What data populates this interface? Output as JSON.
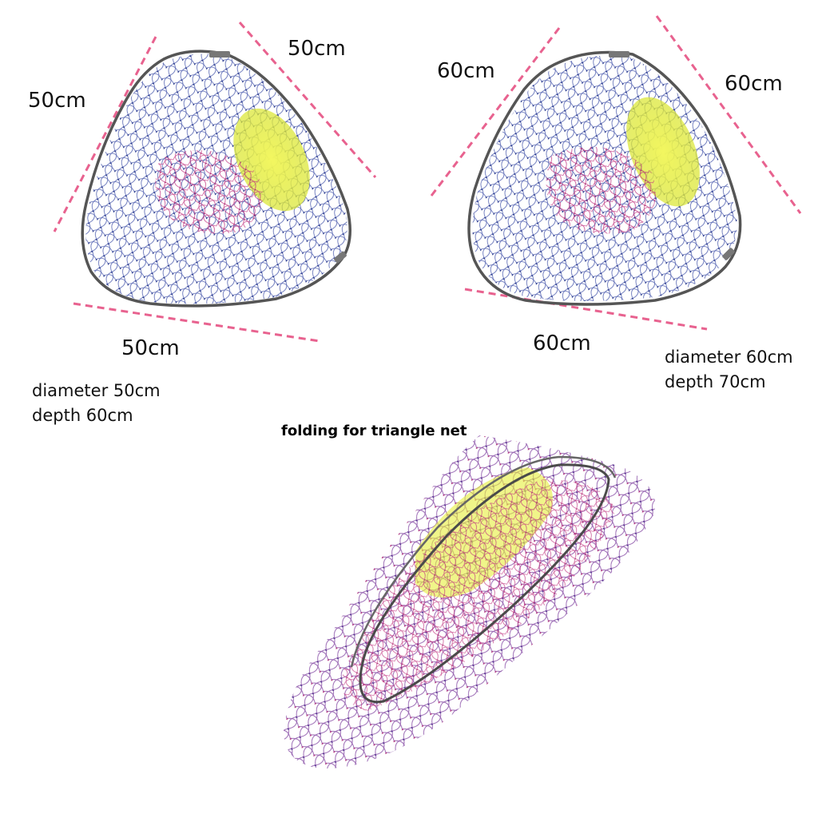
{
  "net_50": {
    "left_side": "50cm",
    "right_side": "50cm",
    "bottom_side": "50cm",
    "spec_line_1": "diameter 50cm",
    "spec_line_2": "depth 60cm"
  },
  "net_60": {
    "left_side": "60cm",
    "right_side": "60cm",
    "bottom_side": "60cm",
    "spec_line_1": "diameter 60cm",
    "spec_line_2": "depth 70cm"
  },
  "folded": {
    "heading": "folding for triangle net"
  },
  "colors": {
    "dimension_line": "#e8628f",
    "frame": "#555555",
    "mesh_blue": "#2c3fa0",
    "mesh_magenta": "#c0307e",
    "float_yellow": "#e6ee3a"
  }
}
